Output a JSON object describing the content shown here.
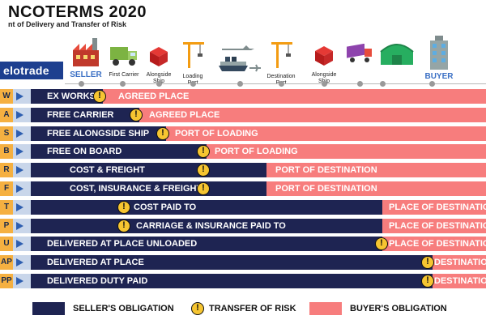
{
  "header": {
    "title": "NCOTERMS 2020",
    "subtitle": "nt of Delivery and Transfer of Risk",
    "logo": "elotrade"
  },
  "stages": [
    {
      "label": "SELLER",
      "icon": "factory-icon"
    },
    {
      "label": "First Carrier",
      "icon": "truck-icon"
    },
    {
      "label": "Alongside Ship",
      "icon": "cargo-box-icon"
    },
    {
      "label": "Loading Port",
      "icon": "crane-icon"
    },
    {
      "label": "",
      "icon": "ship-plane-icon"
    },
    {
      "label": "Destination Port",
      "icon": "crane-icon"
    },
    {
      "label": "Alongside Ship",
      "icon": "cargo-box-icon"
    },
    {
      "label": "",
      "icon": "delivery-truck-icon"
    },
    {
      "label": "",
      "icon": "warehouse-icon"
    },
    {
      "label": "BUYER",
      "icon": "building-icon"
    }
  ],
  "rows": [
    {
      "code": "W",
      "seller_text": "EX WORKS",
      "buyer_text": "AGREED PLACE"
    },
    {
      "code": "A",
      "seller_text": "FREE CARRIER",
      "buyer_text": "AGREED PLACE"
    },
    {
      "code": "S",
      "seller_text": "FREE ALONGSIDE SHIP",
      "buyer_text": "PORT OF LOADING"
    },
    {
      "code": "B",
      "seller_text": "FREE ON BOARD",
      "buyer_text": "PORT OF LOADING"
    },
    {
      "code": "R",
      "seller_text": "COST & FREIGHT",
      "buyer_text": "PORT OF DESTINATION"
    },
    {
      "code": "F",
      "seller_text": "COST, INSURANCE & FREIGHT",
      "buyer_text": "PORT OF DESTINATION"
    },
    {
      "code": "T",
      "seller_text": "COST PAID TO",
      "buyer_text": "PLACE OF DESTINATION"
    },
    {
      "code": "P",
      "seller_text": "CARRIAGE & INSURANCE PAID TO",
      "buyer_text": "PLACE OF DESTINATION"
    },
    {
      "code": "U",
      "seller_text": "DELIVERED AT PLACE UNLOADED",
      "buyer_text": "PLACE OF DESTINATION"
    },
    {
      "code": "AP",
      "seller_text": "DELIVERED AT PLACE",
      "buyer_text": "DESTINATION"
    },
    {
      "code": "PP",
      "seller_text": "DELIVERED DUTY PAID",
      "buyer_text": "DESTINATION"
    }
  ],
  "legend": {
    "seller": "SELLER'S OBLIGATION",
    "risk": "TRANSFER OF RISK",
    "buyer": "BUYER'S OBLIGATION"
  },
  "colors": {
    "seller": "#1e2452",
    "buyer": "#f77d7d",
    "risk": "#f6c531",
    "code": "#f5b041"
  }
}
